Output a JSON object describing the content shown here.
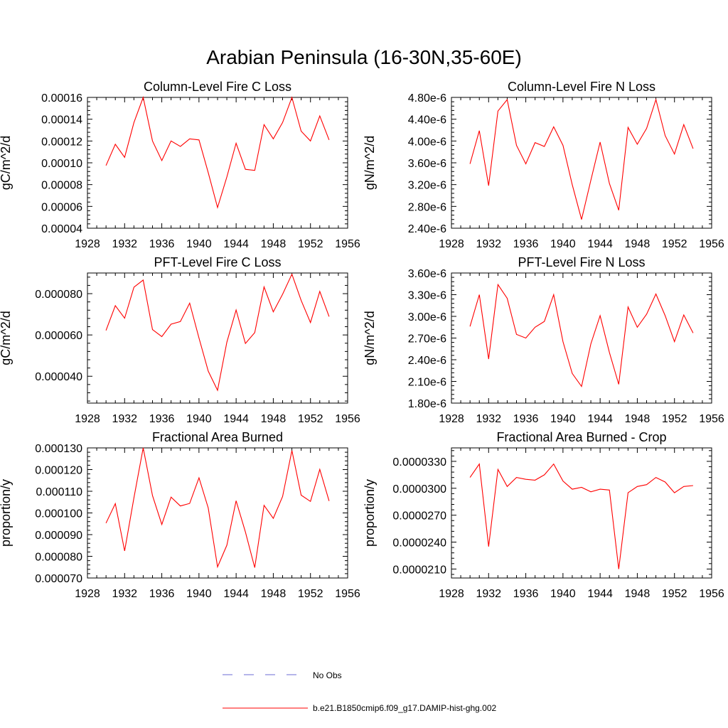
{
  "figure_title": "Arabian Peninsula (16-30N,35-60E)",
  "legend": [
    {
      "label": "No Obs",
      "style": "dashed",
      "color": "#6b6bd6"
    },
    {
      "label": "b.e21.B1850cmip6.f09_g17.DAMIP-hist-ghg.002",
      "style": "solid",
      "color": "#ff0000"
    }
  ],
  "chart_data": [
    {
      "type": "line",
      "title": "Column-Level Fire C Loss",
      "ylabel": "gC/m^2/d",
      "xlabel": "",
      "xlim": [
        1928,
        1956
      ],
      "ylim": [
        4e-05,
        0.00016
      ],
      "xticks": [
        "1928",
        "1932",
        "1936",
        "1940",
        "1944",
        "1948",
        "1952",
        "1956"
      ],
      "yticks": [
        4e-05,
        6e-05,
        8e-05,
        0.0001,
        0.00012,
        0.00014,
        0.00016
      ],
      "ytick_labels": [
        "0.00004",
        "0.00006",
        "0.00008",
        "0.00010",
        "0.00012",
        "0.00014",
        "0.00016"
      ],
      "grid": false,
      "x": [
        1930,
        1931,
        1932,
        1933,
        1934,
        1935,
        1936,
        1937,
        1938,
        1939,
        1940,
        1941,
        1942,
        1943,
        1944,
        1945,
        1946,
        1947,
        1948,
        1949,
        1950,
        1951,
        1952,
        1953,
        1954
      ],
      "series": [
        {
          "name": "b.e21.B1850cmip6.f09_g17.DAMIP-hist-ghg.002",
          "color": "#ff0000",
          "values": [
            9.75e-05,
            0.000117,
            0.000105,
            0.000137,
            0.00016,
            0.00012,
            0.000102,
            0.00012,
            0.000115,
            0.000122,
            0.000121,
            9.1e-05,
            5.9e-05,
            8.7e-05,
            0.000118,
            9.4e-05,
            9.3e-05,
            0.000135,
            0.000122,
            0.000137,
            0.00016,
            0.000129,
            0.00012,
            0.000143,
            0.000121
          ]
        }
      ]
    },
    {
      "type": "line",
      "title": "Column-Level Fire N Loss",
      "ylabel": "gN/m^2/d",
      "xlabel": "",
      "xlim": [
        1928,
        1956
      ],
      "ylim": [
        2.4e-06,
        4.8e-06
      ],
      "xticks": [
        "1928",
        "1932",
        "1936",
        "1940",
        "1944",
        "1948",
        "1952",
        "1956"
      ],
      "yticks": [
        2.4e-06,
        2.8e-06,
        3.2e-06,
        3.6e-06,
        4e-06,
        4.4e-06,
        4.8e-06
      ],
      "ytick_labels": [
        "2.40e-6",
        "2.80e-6",
        "3.20e-6",
        "3.60e-6",
        "4.00e-6",
        "4.40e-6",
        "4.80e-6"
      ],
      "grid": false,
      "x": [
        1930,
        1931,
        1932,
        1933,
        1934,
        1935,
        1936,
        1937,
        1938,
        1939,
        1940,
        1941,
        1942,
        1943,
        1944,
        1945,
        1946,
        1947,
        1948,
        1949,
        1950,
        1951,
        1952,
        1953,
        1954
      ],
      "series": [
        {
          "name": "b.e21.B1850cmip6.f09_g17.DAMIP-hist-ghg.002",
          "color": "#ff0000",
          "values": [
            3.58e-06,
            4.19e-06,
            3.18e-06,
            4.55e-06,
            4.76e-06,
            3.92e-06,
            3.58e-06,
            3.97e-06,
            3.9e-06,
            4.26e-06,
            3.92e-06,
            3.2e-06,
            2.56e-06,
            3.28e-06,
            3.98e-06,
            3.22e-06,
            2.73e-06,
            4.25e-06,
            3.94e-06,
            4.23e-06,
            4.76e-06,
            4.1e-06,
            3.76e-06,
            4.3e-06,
            3.86e-06
          ]
        }
      ]
    },
    {
      "type": "line",
      "title": "PFT-Level Fire C Loss",
      "ylabel": "gC/m^2/d",
      "xlabel": "",
      "xlim": [
        1928,
        1956
      ],
      "ylim": [
        2.7e-05,
        9e-05
      ],
      "xticks": [
        "1928",
        "1932",
        "1936",
        "1940",
        "1944",
        "1948",
        "1952",
        "1956"
      ],
      "yticks": [
        4e-05,
        6e-05,
        8e-05
      ],
      "ytick_labels": [
        "0.000040",
        "0.000060",
        "0.000080"
      ],
      "grid": false,
      "x": [
        1930,
        1931,
        1932,
        1933,
        1934,
        1935,
        1936,
        1937,
        1938,
        1939,
        1940,
        1941,
        1942,
        1943,
        1944,
        1945,
        1946,
        1947,
        1948,
        1949,
        1950,
        1951,
        1952,
        1953,
        1954
      ],
      "series": [
        {
          "name": "b.e21.B1850cmip6.f09_g17.DAMIP-hist-ghg.002",
          "color": "#ff0000",
          "values": [
            6.22e-05,
            7.42e-05,
            6.81e-05,
            8.31e-05,
            8.66e-05,
            6.26e-05,
            5.92e-05,
            6.52e-05,
            6.65e-05,
            7.54e-05,
            5.85e-05,
            4.25e-05,
            3.32e-05,
            5.65e-05,
            7.21e-05,
            5.59e-05,
            6.11e-05,
            8.33e-05,
            7.12e-05,
            7.97e-05,
            8.94e-05,
            7.67e-05,
            6.6e-05,
            8.11e-05,
            6.89e-05
          ]
        }
      ]
    },
    {
      "type": "line",
      "title": "PFT-Level Fire N Loss",
      "ylabel": "gN/m^2/d",
      "xlabel": "",
      "xlim": [
        1928,
        1956
      ],
      "ylim": [
        1.8e-06,
        3.6e-06
      ],
      "xticks": [
        "1928",
        "1932",
        "1936",
        "1940",
        "1944",
        "1948",
        "1952",
        "1956"
      ],
      "yticks": [
        1.8e-06,
        2.1e-06,
        2.4e-06,
        2.7e-06,
        3e-06,
        3.3e-06,
        3.6e-06
      ],
      "ytick_labels": [
        "1.80e-6",
        "2.10e-6",
        "2.40e-6",
        "2.70e-6",
        "3.00e-6",
        "3.30e-6",
        "3.60e-6"
      ],
      "grid": false,
      "x": [
        1930,
        1931,
        1932,
        1933,
        1934,
        1935,
        1936,
        1937,
        1938,
        1939,
        1940,
        1941,
        1942,
        1943,
        1944,
        1945,
        1946,
        1947,
        1948,
        1949,
        1950,
        1951,
        1952,
        1953,
        1954
      ],
      "series": [
        {
          "name": "b.e21.B1850cmip6.f09_g17.DAMIP-hist-ghg.002",
          "color": "#ff0000",
          "values": [
            2.86e-06,
            3.3e-06,
            2.41e-06,
            3.44e-06,
            3.25e-06,
            2.75e-06,
            2.7e-06,
            2.85e-06,
            2.93e-06,
            3.3e-06,
            2.65e-06,
            2.21e-06,
            2.03e-06,
            2.62e-06,
            3.01e-06,
            2.5e-06,
            2.06e-06,
            3.13e-06,
            2.85e-06,
            3.03e-06,
            3.31e-06,
            3.01e-06,
            2.65e-06,
            3.02e-06,
            2.77e-06
          ]
        }
      ]
    },
    {
      "type": "line",
      "title": "Fractional Area Burned",
      "ylabel": "proportion/y",
      "xlabel": "",
      "xlim": [
        1928,
        1956
      ],
      "ylim": [
        7e-05,
        0.00013
      ],
      "xticks": [
        "1928",
        "1932",
        "1936",
        "1940",
        "1944",
        "1948",
        "1952",
        "1956"
      ],
      "yticks": [
        7e-05,
        8e-05,
        9e-05,
        0.0001,
        0.00011,
        0.00012,
        0.00013
      ],
      "ytick_labels": [
        "0.000070",
        "0.000080",
        "0.000090",
        "0.000100",
        "0.000110",
        "0.000120",
        "0.000130"
      ],
      "grid": false,
      "x": [
        1930,
        1931,
        1932,
        1933,
        1934,
        1935,
        1936,
        1937,
        1938,
        1939,
        1940,
        1941,
        1942,
        1943,
        1944,
        1945,
        1946,
        1947,
        1948,
        1949,
        1950,
        1951,
        1952,
        1953,
        1954
      ],
      "series": [
        {
          "name": "b.e21.B1850cmip6.f09_g17.DAMIP-hist-ghg.002",
          "color": "#ff0000",
          "values": [
            9.53e-05,
            0.0001043,
            8.25e-05,
            0.000107,
            0.00013,
            0.000108,
            9.47e-05,
            0.0001073,
            0.0001032,
            0.0001044,
            0.0001162,
            0.0001023,
            7.51e-05,
            8.51e-05,
            0.0001056,
            9.12e-05,
            7.48e-05,
            0.0001035,
            9.75e-05,
            0.0001076,
            0.0001288,
            0.0001082,
            0.0001053,
            0.0001201,
            0.0001055
          ]
        }
      ]
    },
    {
      "type": "line",
      "title": "Fractional Area Burned - Crop",
      "ylabel": "proportion/y",
      "xlabel": "",
      "xlim": [
        1928,
        1956
      ],
      "ylim": [
        2e-05,
        3.45e-05
      ],
      "xticks": [
        "1928",
        "1932",
        "1936",
        "1940",
        "1944",
        "1948",
        "1952",
        "1956"
      ],
      "yticks": [
        2.1e-05,
        2.4e-05,
        2.7e-05,
        3e-05,
        3.3e-05
      ],
      "ytick_labels": [
        "0.0000210",
        "0.0000240",
        "0.0000270",
        "0.0000300",
        "0.0000330"
      ],
      "grid": false,
      "x": [
        1930,
        1931,
        1932,
        1933,
        1934,
        1935,
        1936,
        1937,
        1938,
        1939,
        1940,
        1941,
        1942,
        1943,
        1944,
        1945,
        1946,
        1947,
        1948,
        1949,
        1950,
        1951,
        1952,
        1953,
        1954
      ],
      "series": [
        {
          "name": "b.e21.B1850cmip6.f09_g17.DAMIP-hist-ghg.002",
          "color": "#ff0000",
          "values": [
            3.12e-05,
            3.27e-05,
            2.35e-05,
            3.21e-05,
            3.02e-05,
            3.12e-05,
            3.1e-05,
            3.09e-05,
            3.15e-05,
            3.27e-05,
            3.08e-05,
            2.99e-05,
            3.01e-05,
            2.96e-05,
            2.99e-05,
            2.98e-05,
            2.1e-05,
            2.95e-05,
            3.02e-05,
            3.04e-05,
            3.12e-05,
            3.07e-05,
            2.95e-05,
            3.02e-05,
            3.03e-05
          ]
        }
      ]
    }
  ]
}
